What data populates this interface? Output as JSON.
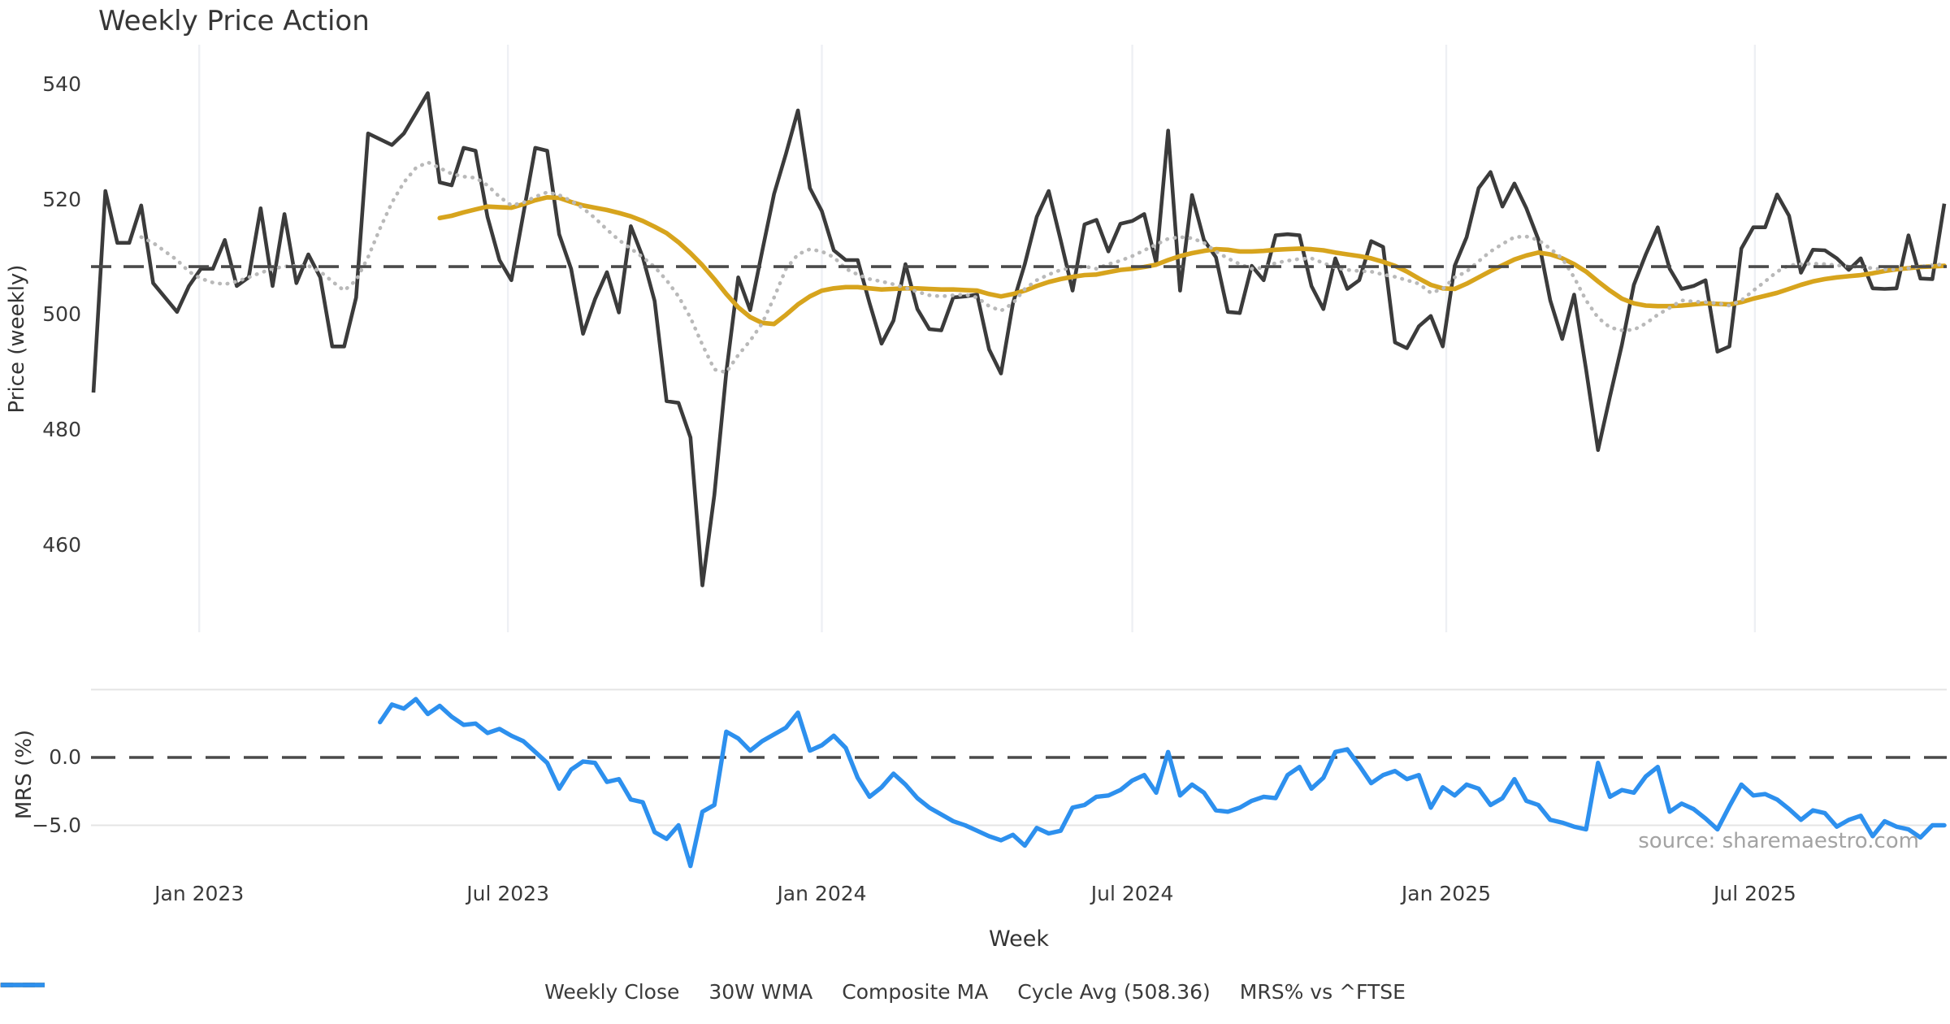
{
  "source_note": "source: sharemaestro.com",
  "colors": {
    "close": "#3b3b3b",
    "wma": "#d7a41d",
    "composite": "#b9b9b9",
    "cycle": "#4a4a4a",
    "mrs": "#2d90ee",
    "grid": "#eef0f4",
    "subgrid": "#e4e4e4",
    "text": "#3a3a3a",
    "muted": "#a3a3a3"
  },
  "legend": [
    {
      "label": "Weekly Close",
      "color": "#3b3b3b",
      "style": "solid"
    },
    {
      "label": "30W WMA",
      "color": "#d7a41d",
      "style": "solid"
    },
    {
      "label": "Composite MA",
      "color": "#b9b9b9",
      "style": "dotted"
    },
    {
      "label": "Cycle Avg (508.36)",
      "color": "#4a4a4a",
      "style": "dashed"
    },
    {
      "label": "MRS% vs ^FTSE",
      "color": "#2d90ee",
      "style": "solid"
    }
  ],
  "chart_data": [
    {
      "type": "line",
      "title": "Weekly Price Action",
      "ylabel": "Price (weekly)",
      "ylim": [
        446,
        544
      ],
      "grid": "vertical-only",
      "y_ticks": [
        540,
        520,
        500,
        480,
        460
      ],
      "x_ticks": [
        {
          "label": "Jan 2023",
          "week": 8.86
        },
        {
          "label": "Jul 2023",
          "week": 34.71
        },
        {
          "label": "Jan 2024",
          "week": 61.0
        },
        {
          "label": "Jul 2024",
          "week": 87.0
        },
        {
          "label": "Jan 2025",
          "week": 113.29
        },
        {
          "label": "Jul 2025",
          "week": 139.14
        }
      ],
      "cycle_avg": 508.36,
      "series": [
        {
          "name": "Weekly Close",
          "values": [
            486.5,
            521.5,
            512.5,
            512.5,
            519,
            505.5,
            503,
            500.5,
            505,
            508,
            508,
            513,
            505,
            506.5,
            518.5,
            505,
            517.5,
            505.5,
            510.5,
            506.5,
            494.5,
            494.5,
            503,
            531.5,
            530.5,
            529.5,
            531.5,
            535,
            538.5,
            523,
            522.5,
            529,
            528.5,
            517,
            509.5,
            506,
            517.5,
            529,
            528.5,
            514,
            508,
            496.7,
            502.7,
            507.4,
            500.4,
            515.4,
            510,
            502.4,
            485,
            484.7,
            478.7,
            453,
            468.7,
            490,
            506.5,
            500.8,
            511,
            521,
            528,
            535.5,
            522,
            518,
            511.2,
            509.5,
            509.5,
            502,
            495,
            499,
            508.8,
            501,
            497.5,
            497.3,
            503,
            503.2,
            503.5,
            494,
            489.8,
            502,
            508.8,
            517,
            521.5,
            513,
            504.2,
            515.7,
            516.5,
            511,
            515.8,
            516.3,
            517.5,
            509,
            532,
            504.2,
            520.8,
            513,
            510,
            500.5,
            500.3,
            508.5,
            506,
            513.8,
            514,
            513.8,
            505,
            501,
            509.8,
            504.5,
            506,
            512.8,
            511.8,
            495.2,
            494.2,
            498,
            499.8,
            494.5,
            508.5,
            513.5,
            522,
            524.8,
            518.8,
            522.8,
            518.5,
            513.1,
            502.5,
            495.8,
            503.5,
            490.5,
            476.5,
            485.8,
            494.8,
            505.2,
            510.5,
            515.2,
            508,
            504.5,
            505,
            506,
            493.6,
            494.5,
            511.5,
            515.2,
            515.2,
            520.9,
            517.2,
            507.3,
            511.3,
            511.2,
            509.8,
            507.8,
            509.8,
            504.6,
            504.5,
            504.6,
            513.8,
            506.3,
            506.2,
            519.3
          ]
        },
        {
          "name": "30W WMA",
          "values": [
            null,
            null,
            null,
            null,
            null,
            null,
            null,
            null,
            null,
            null,
            null,
            null,
            null,
            null,
            null,
            null,
            null,
            null,
            null,
            null,
            null,
            null,
            null,
            null,
            null,
            null,
            null,
            null,
            null,
            516.8,
            517.2,
            517.8,
            518.3,
            518.8,
            518.7,
            518.6,
            519.2,
            519.9,
            520.4,
            520.3,
            519.6,
            519.0,
            518.6,
            518.2,
            517.7,
            517.1,
            516.3,
            515.3,
            514.2,
            512.6,
            510.7,
            508.6,
            506.2,
            503.6,
            501.3,
            499.6,
            498.6,
            498.4,
            500.0,
            501.8,
            503.2,
            504.2,
            504.6,
            504.8,
            504.8,
            504.6,
            504.4,
            504.5,
            504.6,
            504.6,
            504.5,
            504.4,
            504.4,
            504.3,
            504.2,
            503.6,
            503.2,
            503.6,
            504.2,
            505.0,
            505.7,
            506.2,
            506.6,
            506.9,
            507.0,
            507.4,
            507.8,
            508.0,
            508.3,
            508.7,
            509.5,
            510.2,
            510.7,
            511.1,
            511.4,
            511.3,
            511.0,
            511.0,
            511.1,
            511.3,
            511.4,
            511.5,
            511.4,
            511.2,
            510.8,
            510.5,
            510.2,
            509.8,
            509.2,
            508.5,
            507.5,
            506.3,
            505.2,
            504.6,
            504.5,
            505.4,
            506.5,
            507.6,
            508.6,
            509.6,
            510.3,
            510.8,
            510.5,
            509.8,
            508.8,
            507.5,
            505.8,
            504.2,
            502.8,
            502.0,
            501.6,
            501.5,
            501.5,
            501.6,
            501.8,
            502.0,
            501.9,
            501.8,
            502.2,
            502.8,
            503.3,
            503.8,
            504.5,
            505.2,
            505.8,
            506.2,
            506.5,
            506.7,
            506.9,
            507.2,
            507.6,
            507.9,
            508.1,
            508.3,
            508.4,
            508.5
          ]
        },
        {
          "name": "Composite MA",
          "values": [
            null,
            null,
            null,
            null,
            513.5,
            512.5,
            511,
            509.5,
            507.5,
            506.3,
            505.6,
            505.3,
            505.8,
            506.5,
            507.3,
            508,
            508.4,
            508.5,
            508.5,
            507.5,
            505.8,
            504.2,
            506,
            510,
            515,
            519.5,
            523,
            525.5,
            526.5,
            525.5,
            524.5,
            524,
            523.8,
            522.5,
            520.5,
            519,
            519.5,
            520.5,
            521.3,
            520.8,
            519.8,
            518.5,
            516.8,
            514.8,
            513,
            511.5,
            510,
            508.3,
            506,
            503.2,
            499.5,
            494.8,
            490.5,
            490,
            493,
            495.5,
            498.5,
            503,
            508,
            510.5,
            511.4,
            511,
            510,
            508,
            507,
            506.2,
            505.8,
            505.3,
            504.7,
            504,
            503.4,
            503.2,
            503.4,
            503.5,
            503,
            501.5,
            500.7,
            502,
            504.5,
            506,
            507,
            507.8,
            508.2,
            508.4,
            508,
            508.8,
            509.4,
            510.2,
            511.2,
            512.2,
            513.2,
            513.5,
            513.3,
            512.5,
            511,
            509.8,
            508.8,
            508,
            508.2,
            509,
            509.4,
            509.7,
            509.8,
            509,
            508.2,
            507.8,
            507.6,
            507.5,
            507,
            506.6,
            506,
            505.4,
            503.8,
            504.5,
            506.5,
            507.5,
            509.3,
            511,
            512.3,
            513.5,
            513.6,
            513,
            511.5,
            509.8,
            506.5,
            502.5,
            499.5,
            497.8,
            497.3,
            497.4,
            498.5,
            500,
            501.2,
            502.5,
            502.3,
            502.2,
            502,
            501.6,
            502.5,
            504.2,
            505.8,
            507.5,
            508.6,
            508.8,
            508.9,
            508.8,
            508.6,
            508.4,
            508.3,
            508.1,
            507.9,
            507.9,
            508.1,
            508.4,
            508.6,
            508.8
          ]
        }
      ]
    },
    {
      "type": "line",
      "ylabel": "MRS (%)",
      "xlabel": "Week",
      "ylim": [
        -8.8,
        5.0
      ],
      "grid": "horizontal-only",
      "y_ticks": [
        {
          "label": "0.0",
          "value": 0
        },
        {
          "label": "−5.0",
          "value": -5
        }
      ],
      "gridline_values": [
        5,
        -5
      ],
      "zero_line": 0,
      "series": [
        {
          "name": "MRS% vs ^FTSE",
          "values": [
            null,
            null,
            null,
            null,
            null,
            null,
            null,
            null,
            null,
            null,
            null,
            null,
            null,
            null,
            null,
            null,
            null,
            null,
            null,
            null,
            null,
            null,
            null,
            null,
            2.6,
            3.9,
            3.6,
            4.3,
            3.2,
            3.8,
            3.0,
            2.4,
            2.5,
            1.8,
            2.1,
            1.6,
            1.2,
            0.4,
            -0.4,
            -2.3,
            -0.9,
            -0.3,
            -0.4,
            -1.8,
            -1.6,
            -3.1,
            -3.3,
            -5.5,
            -6.0,
            -5.0,
            -8.0,
            -4.0,
            -3.5,
            1.9,
            1.4,
            0.5,
            1.2,
            1.7,
            2.2,
            3.3,
            0.5,
            0.9,
            1.6,
            0.7,
            -1.5,
            -2.9,
            -2.2,
            -1.2,
            -2.0,
            -3.0,
            -3.7,
            -4.2,
            -4.7,
            -5.0,
            -5.4,
            -5.8,
            -6.1,
            -5.7,
            -6.5,
            -5.2,
            -5.6,
            -5.4,
            -3.7,
            -3.5,
            -2.9,
            -2.8,
            -2.4,
            -1.7,
            -1.3,
            -2.6,
            0.4,
            -2.8,
            -2.0,
            -2.6,
            -3.9,
            -4.0,
            -3.7,
            -3.2,
            -2.9,
            -3.0,
            -1.3,
            -0.7,
            -2.3,
            -1.5,
            0.4,
            0.6,
            -0.6,
            -1.9,
            -1.3,
            -1.0,
            -1.6,
            -1.3,
            -3.7,
            -2.2,
            -2.8,
            -2.0,
            -2.3,
            -3.5,
            -3.0,
            -1.6,
            -3.2,
            -3.5,
            -4.6,
            -4.8,
            -5.1,
            -5.3,
            -0.4,
            -2.9,
            -2.4,
            -2.6,
            -1.4,
            -0.7,
            -4.0,
            -3.4,
            -3.8,
            -4.5,
            -5.3,
            -3.6,
            -2.0,
            -2.8,
            -2.7,
            -3.1,
            -3.8,
            -4.6,
            -3.9,
            -4.1,
            -5.1,
            -4.6,
            -4.3,
            -5.8,
            -4.7,
            -5.1,
            -5.3,
            -5.9,
            -5.0,
            -5.0
          ]
        }
      ]
    }
  ]
}
